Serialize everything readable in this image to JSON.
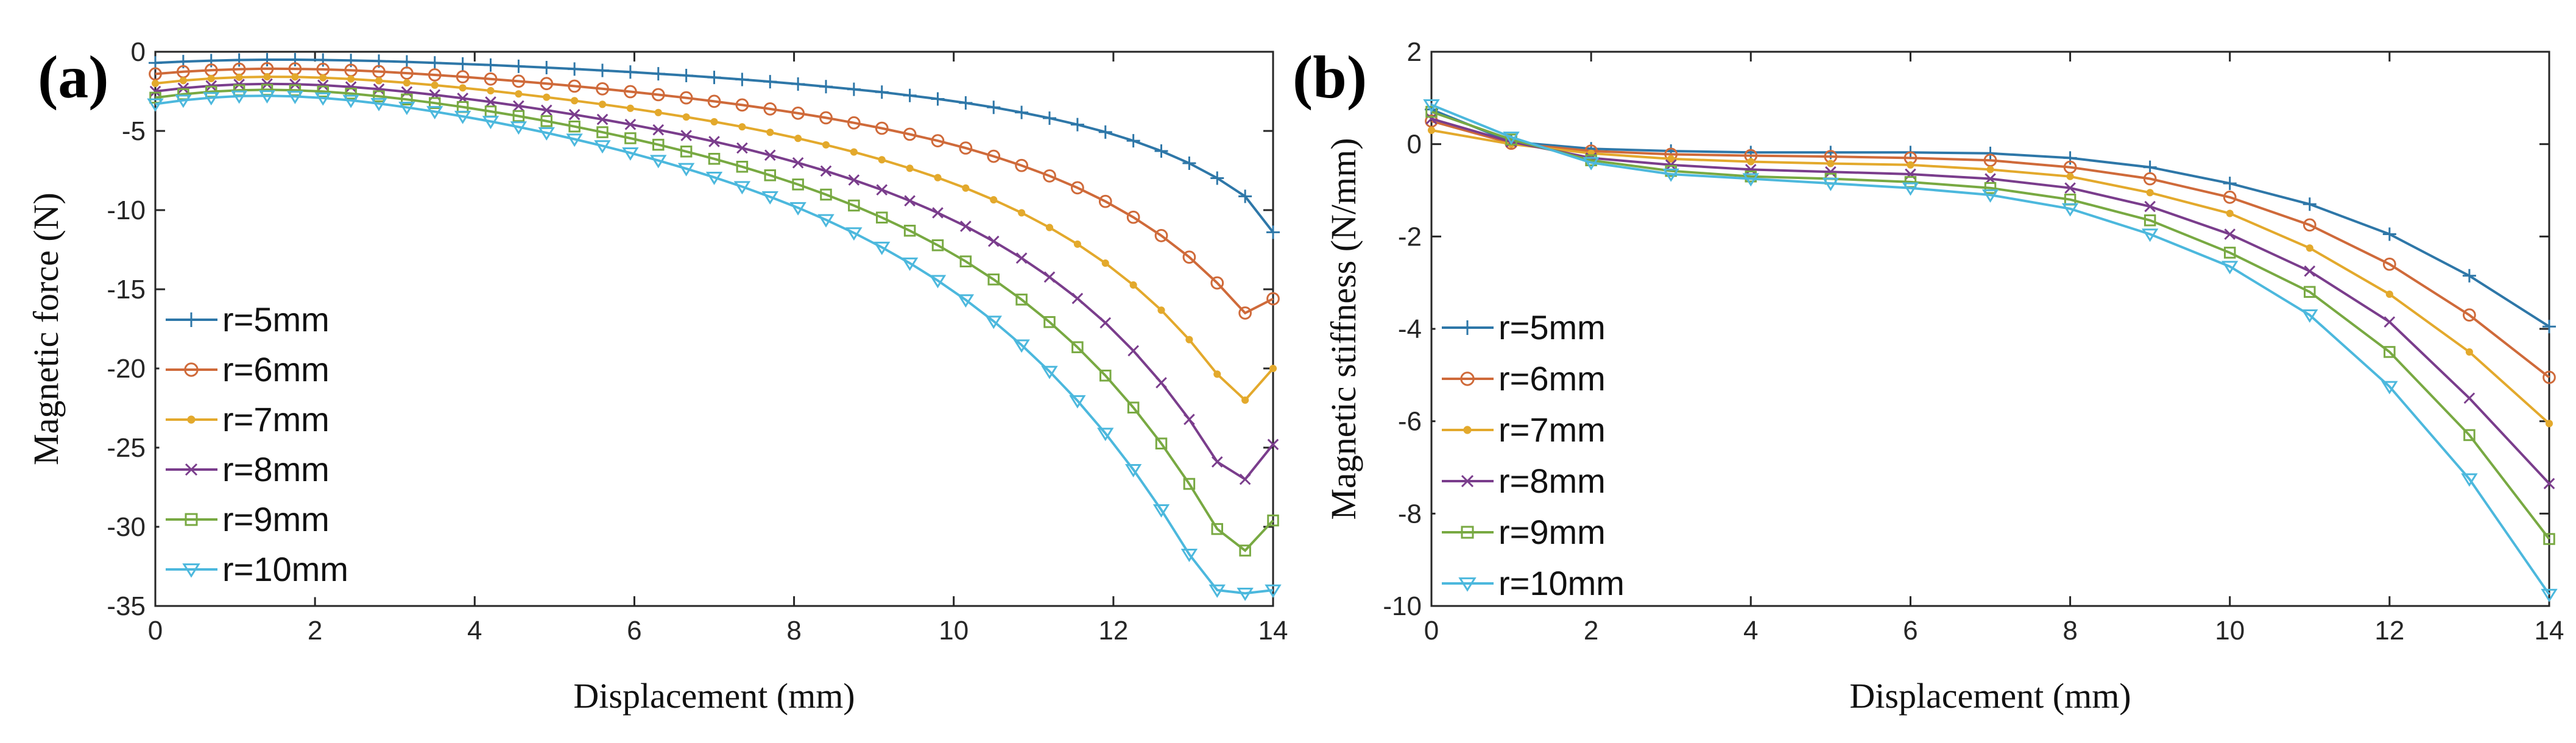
{
  "chart_data": [
    {
      "type": "line",
      "panel_label": "(a)",
      "title": "",
      "xlabel": "Displacement (mm)",
      "ylabel": "Magnetic  force (N)",
      "xlim": [
        0,
        14
      ],
      "ylim": [
        -35,
        0
      ],
      "xticks": [
        0,
        2,
        4,
        6,
        8,
        10,
        12,
        14
      ],
      "yticks": [
        0,
        -5,
        -10,
        -15,
        -20,
        -25,
        -30,
        -35
      ],
      "grid": false,
      "legend_position": "bottom-left",
      "x": [
        0,
        0.35,
        0.7,
        1.05,
        1.4,
        1.75,
        2.1,
        2.45,
        2.8,
        3.15,
        3.5,
        3.85,
        4.2,
        4.55,
        4.9,
        5.25,
        5.6,
        5.95,
        6.3,
        6.65,
        7,
        7.35,
        7.7,
        8.05,
        8.4,
        8.75,
        9.1,
        9.45,
        9.8,
        10.15,
        10.5,
        10.85,
        11.2,
        11.55,
        11.9,
        12.25,
        12.6,
        12.95,
        13.3,
        13.65,
        14
      ],
      "series": [
        {
          "name": "r=5mm",
          "color": "#2e77a8",
          "marker": "plus",
          "values": [
            -0.7,
            -0.62,
            -0.56,
            -0.52,
            -0.5,
            -0.5,
            -0.52,
            -0.55,
            -0.59,
            -0.64,
            -0.7,
            -0.77,
            -0.84,
            -0.92,
            -1.0,
            -1.09,
            -1.18,
            -1.28,
            -1.39,
            -1.5,
            -1.62,
            -1.75,
            -1.89,
            -2.04,
            -2.2,
            -2.37,
            -2.55,
            -2.76,
            -2.98,
            -3.23,
            -3.51,
            -3.83,
            -4.19,
            -4.6,
            -5.07,
            -5.62,
            -6.27,
            -7.04,
            -7.98,
            -9.13,
            -11.4
          ]
        },
        {
          "name": "r=6mm",
          "color": "#cf6a3a",
          "marker": "circle",
          "values": [
            -1.4,
            -1.26,
            -1.16,
            -1.1,
            -1.07,
            -1.08,
            -1.11,
            -1.17,
            -1.25,
            -1.35,
            -1.46,
            -1.58,
            -1.72,
            -1.86,
            -2.01,
            -2.17,
            -2.34,
            -2.52,
            -2.71,
            -2.91,
            -3.13,
            -3.36,
            -3.61,
            -3.88,
            -4.17,
            -4.49,
            -4.83,
            -5.21,
            -5.62,
            -6.08,
            -6.6,
            -7.18,
            -7.84,
            -8.59,
            -9.45,
            -10.45,
            -11.61,
            -12.97,
            -14.6,
            -16.5,
            -15.6
          ]
        },
        {
          "name": "r=7mm",
          "color": "#e3a92c",
          "marker": "dot",
          "values": [
            -2.0,
            -1.82,
            -1.69,
            -1.61,
            -1.58,
            -1.59,
            -1.64,
            -1.72,
            -1.83,
            -1.96,
            -2.11,
            -2.28,
            -2.46,
            -2.66,
            -2.87,
            -3.09,
            -3.32,
            -3.57,
            -3.84,
            -4.12,
            -4.42,
            -4.74,
            -5.09,
            -5.47,
            -5.88,
            -6.33,
            -6.82,
            -7.36,
            -7.95,
            -8.61,
            -9.35,
            -10.17,
            -11.1,
            -12.15,
            -13.35,
            -14.73,
            -16.32,
            -18.18,
            -20.36,
            -22.0,
            -20.0
          ]
        },
        {
          "name": "r=8mm",
          "color": "#7a3d8c",
          "marker": "cross",
          "values": [
            -2.5,
            -2.3,
            -2.15,
            -2.06,
            -2.03,
            -2.05,
            -2.11,
            -2.22,
            -2.36,
            -2.53,
            -2.72,
            -2.94,
            -3.17,
            -3.42,
            -3.69,
            -3.97,
            -4.27,
            -4.59,
            -4.93,
            -5.29,
            -5.67,
            -6.08,
            -6.53,
            -7.01,
            -7.53,
            -8.1,
            -8.72,
            -9.41,
            -10.17,
            -11.02,
            -11.97,
            -13.03,
            -14.23,
            -15.58,
            -17.12,
            -18.88,
            -20.9,
            -23.22,
            -25.9,
            -27.0,
            -24.8
          ]
        },
        {
          "name": "r=9mm",
          "color": "#78a942",
          "marker": "square",
          "values": [
            -2.9,
            -2.68,
            -2.52,
            -2.43,
            -2.4,
            -2.43,
            -2.51,
            -2.64,
            -2.81,
            -3.01,
            -3.24,
            -3.49,
            -3.77,
            -4.06,
            -4.38,
            -4.72,
            -5.08,
            -5.46,
            -5.87,
            -6.3,
            -6.76,
            -7.26,
            -7.8,
            -8.38,
            -9.02,
            -9.71,
            -10.47,
            -11.3,
            -12.22,
            -13.24,
            -14.38,
            -15.65,
            -17.07,
            -18.66,
            -20.45,
            -22.47,
            -24.74,
            -27.29,
            -30.14,
            -31.5,
            -29.6
          ]
        },
        {
          "name": "r=10mm",
          "color": "#4cb8dd",
          "marker": "triangle-down",
          "values": [
            -3.3,
            -3.06,
            -2.9,
            -2.8,
            -2.78,
            -2.82,
            -2.92,
            -3.07,
            -3.27,
            -3.51,
            -3.78,
            -4.08,
            -4.4,
            -4.75,
            -5.12,
            -5.52,
            -5.94,
            -6.39,
            -6.87,
            -7.38,
            -7.93,
            -8.52,
            -9.16,
            -9.85,
            -10.61,
            -11.44,
            -12.35,
            -13.35,
            -14.45,
            -15.67,
            -17.02,
            -18.52,
            -20.19,
            -22.04,
            -24.1,
            -26.39,
            -28.93,
            -31.74,
            -34.0,
            -34.2,
            -34.0
          ]
        }
      ]
    },
    {
      "type": "line",
      "panel_label": "(b)",
      "title": "",
      "xlabel": "Displacement (mm)",
      "ylabel": "Magnetic stiffness (N/mm)",
      "xlim": [
        0,
        14
      ],
      "ylim": [
        -10,
        2
      ],
      "xticks": [
        0,
        2,
        4,
        6,
        8,
        10,
        12,
        14
      ],
      "yticks": [
        2,
        0,
        -2,
        -4,
        -6,
        -8,
        -10
      ],
      "grid": false,
      "legend_position": "bottom-left",
      "x": [
        0,
        1,
        2,
        3,
        4,
        5,
        6,
        7,
        8,
        9,
        10,
        11,
        12,
        13,
        14
      ],
      "series": [
        {
          "name": "r=5mm",
          "color": "#2e77a8",
          "marker": "plus",
          "values": [
            0.75,
            0.05,
            -0.1,
            -0.15,
            -0.18,
            -0.18,
            -0.18,
            -0.2,
            -0.3,
            -0.5,
            -0.85,
            -1.3,
            -1.95,
            -2.85,
            -3.95
          ]
        },
        {
          "name": "r=6mm",
          "color": "#cf6a3a",
          "marker": "circle",
          "values": [
            0.5,
            0.02,
            -0.15,
            -0.22,
            -0.25,
            -0.27,
            -0.3,
            -0.35,
            -0.5,
            -0.75,
            -1.15,
            -1.75,
            -2.6,
            -3.7,
            -5.05
          ]
        },
        {
          "name": "r=7mm",
          "color": "#e3a92c",
          "marker": "dot",
          "values": [
            0.3,
            0.0,
            -0.2,
            -0.32,
            -0.38,
            -0.42,
            -0.45,
            -0.55,
            -0.7,
            -1.05,
            -1.5,
            -2.25,
            -3.25,
            -4.5,
            -6.05
          ]
        },
        {
          "name": "r=8mm",
          "color": "#7a3d8c",
          "marker": "cross",
          "values": [
            0.55,
            0.05,
            -0.3,
            -0.45,
            -0.55,
            -0.6,
            -0.65,
            -0.75,
            -0.95,
            -1.35,
            -1.95,
            -2.75,
            -3.85,
            -5.5,
            -7.35
          ]
        },
        {
          "name": "r=9mm",
          "color": "#78a942",
          "marker": "square",
          "values": [
            0.7,
            0.1,
            -0.35,
            -0.58,
            -0.7,
            -0.75,
            -0.82,
            -0.95,
            -1.2,
            -1.65,
            -2.35,
            -3.2,
            -4.5,
            -6.3,
            -8.55
          ]
        },
        {
          "name": "r=10mm",
          "color": "#4cb8dd",
          "marker": "triangle-down",
          "values": [
            0.85,
            0.15,
            -0.4,
            -0.65,
            -0.75,
            -0.85,
            -0.95,
            -1.1,
            -1.4,
            -1.95,
            -2.65,
            -3.7,
            -5.25,
            -7.25,
            -9.75
          ]
        }
      ]
    }
  ]
}
